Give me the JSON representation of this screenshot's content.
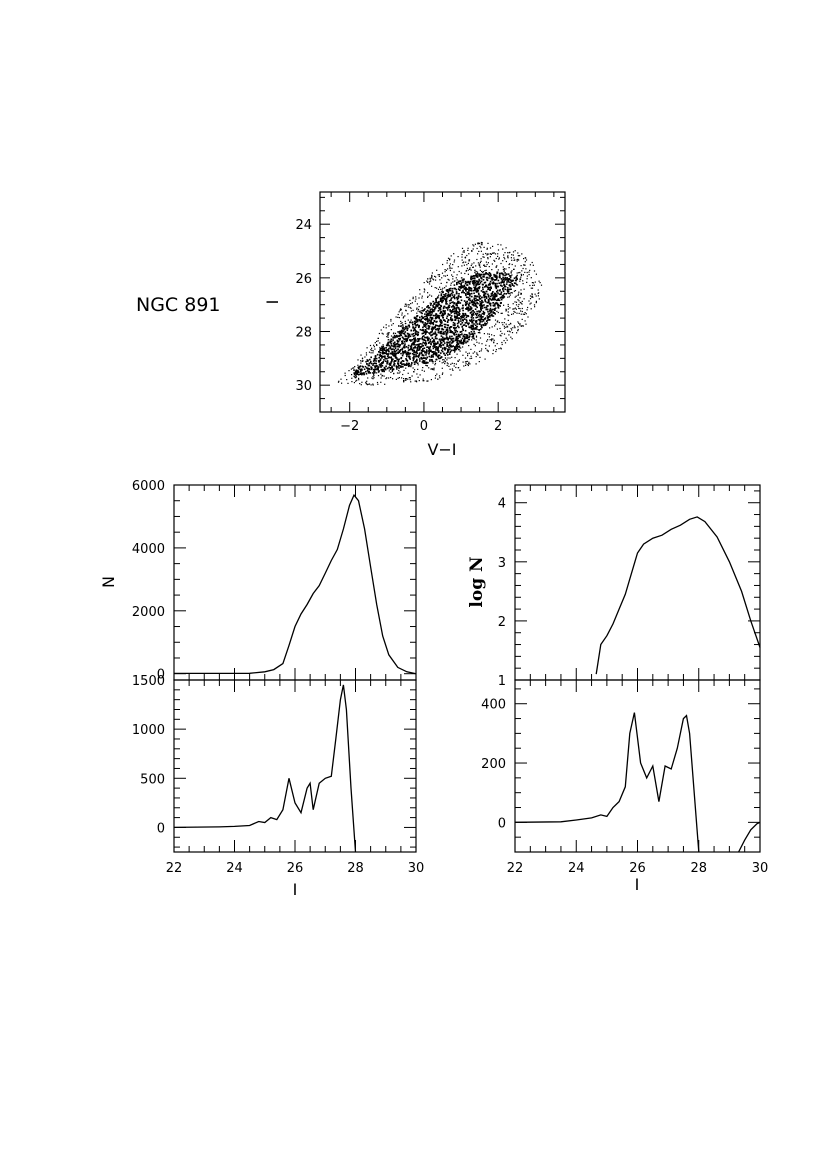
{
  "object_label": "NGC 891",
  "chart_data": [
    {
      "id": "cmd",
      "type": "scatter",
      "xlabel": "V−I",
      "ylabel": "I",
      "xlim": [
        -2.8,
        3.8
      ],
      "ylim": [
        31.0,
        22.8
      ],
      "y_inverted": true,
      "xticks": [
        -2,
        0,
        2
      ],
      "yticks": [
        24,
        26,
        28,
        30
      ],
      "density_core": [
        [
          -2.0,
          29.5
        ],
        [
          -1.5,
          29.0
        ],
        [
          -0.9,
          28.2
        ],
        [
          -0.4,
          27.6
        ],
        [
          0.1,
          27.0
        ],
        [
          0.5,
          26.5
        ],
        [
          0.9,
          26.1
        ],
        [
          1.4,
          25.8
        ],
        [
          2.0,
          25.7
        ],
        [
          2.6,
          26.0
        ],
        [
          2.2,
          26.6
        ],
        [
          1.9,
          27.3
        ],
        [
          1.6,
          27.8
        ],
        [
          1.2,
          28.3
        ],
        [
          0.7,
          28.8
        ],
        [
          0.2,
          29.1
        ],
        [
          -0.5,
          29.3
        ],
        [
          -1.2,
          29.5
        ],
        [
          -1.8,
          29.6
        ]
      ],
      "sparse_envelope": [
        [
          -2.4,
          29.9
        ],
        [
          -1.8,
          29.0
        ],
        [
          -1.0,
          27.6
        ],
        [
          -0.3,
          26.6
        ],
        [
          0.4,
          25.5
        ],
        [
          0.9,
          24.9
        ],
        [
          1.5,
          24.6
        ],
        [
          2.3,
          24.8
        ],
        [
          3.0,
          25.4
        ],
        [
          3.2,
          26.5
        ],
        [
          2.7,
          27.8
        ],
        [
          2.1,
          28.6
        ],
        [
          1.3,
          29.3
        ],
        [
          0.4,
          29.8
        ],
        [
          -0.6,
          29.9
        ],
        [
          -1.6,
          30.0
        ]
      ]
    },
    {
      "id": "lf-linear",
      "type": "line",
      "xlabel": "",
      "ylabel": "N",
      "xlim": [
        22,
        30
      ],
      "ylim": [
        -200,
        6000
      ],
      "yticks": [
        0,
        2000,
        4000,
        6000
      ],
      "x": [
        22.0,
        24.5,
        25.0,
        25.3,
        25.6,
        25.8,
        26.0,
        26.2,
        26.4,
        26.6,
        26.8,
        27.0,
        27.2,
        27.4,
        27.6,
        27.8,
        27.95,
        28.1,
        28.3,
        28.5,
        28.7,
        28.9,
        29.1,
        29.4,
        29.7,
        30.0
      ],
      "y": [
        10,
        12,
        60,
        130,
        320,
        900,
        1500,
        1900,
        2200,
        2550,
        2800,
        3200,
        3600,
        3950,
        4600,
        5350,
        5680,
        5500,
        4600,
        3400,
        2200,
        1200,
        600,
        200,
        60,
        0
      ]
    },
    {
      "id": "lf-linear-residual",
      "type": "line",
      "xlabel": "I",
      "ylabel": "",
      "xlim": [
        22,
        30
      ],
      "ylim": [
        -250,
        1500
      ],
      "xticks": [
        22,
        24,
        26,
        28,
        30
      ],
      "yticks": [
        0,
        500,
        1000,
        1500
      ],
      "x": [
        22.0,
        23.5,
        24.0,
        24.5,
        24.8,
        25.0,
        25.2,
        25.4,
        25.6,
        25.8,
        26.0,
        26.2,
        26.4,
        26.5,
        26.6,
        26.8,
        27.0,
        27.2,
        27.35,
        27.5,
        27.6,
        27.7,
        27.85,
        28.0
      ],
      "y": [
        0,
        5,
        10,
        20,
        60,
        50,
        100,
        80,
        180,
        500,
        250,
        150,
        400,
        450,
        180,
        450,
        500,
        520,
        900,
        1300,
        1450,
        1200,
        400,
        -250
      ]
    },
    {
      "id": "lf-log",
      "type": "line",
      "xlabel": "",
      "ylabel": "log N",
      "xlim": [
        22,
        30
      ],
      "ylim": [
        1,
        4.3
      ],
      "yticks": [
        1,
        2,
        3,
        4
      ],
      "x": [
        24.65,
        24.8,
        25.0,
        25.2,
        25.4,
        25.6,
        25.8,
        26.0,
        26.2,
        26.5,
        26.8,
        27.1,
        27.4,
        27.7,
        27.95,
        28.2,
        28.6,
        29.0,
        29.4,
        29.7,
        30.0
      ],
      "y": [
        1.1,
        1.6,
        1.75,
        1.95,
        2.2,
        2.45,
        2.8,
        3.15,
        3.3,
        3.4,
        3.45,
        3.55,
        3.62,
        3.72,
        3.76,
        3.68,
        3.42,
        3.0,
        2.5,
        2.0,
        1.55
      ]
    },
    {
      "id": "lf-log-residual",
      "type": "line",
      "xlabel": "I",
      "ylabel": "",
      "xlim": [
        22,
        30
      ],
      "ylim": [
        -100,
        480
      ],
      "xticks": [
        22,
        24,
        26,
        28,
        30
      ],
      "yticks": [
        0,
        200,
        400
      ],
      "x": [
        22.0,
        23.5,
        24.0,
        24.5,
        24.8,
        25.0,
        25.2,
        25.4,
        25.6,
        25.75,
        25.9,
        26.1,
        26.3,
        26.5,
        26.7,
        26.9,
        27.1,
        27.3,
        27.5,
        27.6,
        27.7,
        27.85,
        28.0
      ],
      "y": [
        0,
        2,
        8,
        15,
        25,
        20,
        50,
        70,
        120,
        300,
        370,
        200,
        150,
        190,
        70,
        190,
        180,
        250,
        350,
        360,
        300,
        100,
        -100
      ],
      "x2": [
        29.3,
        29.5,
        29.7,
        29.9,
        30.0
      ],
      "y2": [
        -100,
        -60,
        -25,
        -5,
        0
      ]
    }
  ]
}
